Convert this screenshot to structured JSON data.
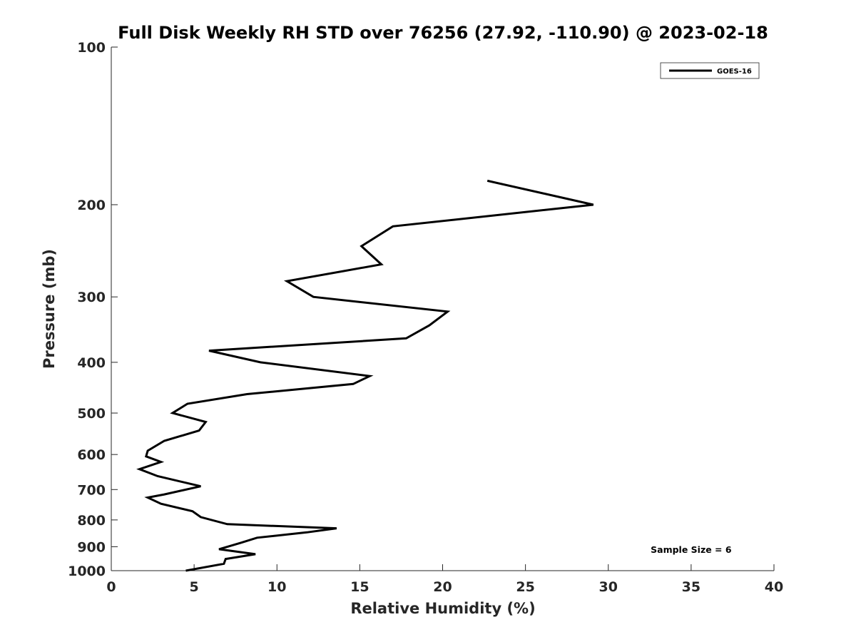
{
  "chart_data": {
    "type": "line",
    "title": "Full Disk Weekly RH STD over 76256 (27.92, -110.90) @ 2023-02-18",
    "xlabel": "Relative Humidity (%)",
    "ylabel": "Pressure (mb)",
    "xlim": [
      0,
      40
    ],
    "ylim": [
      1000,
      100
    ],
    "y_scale": "log",
    "y_reversed": true,
    "grid": false,
    "legend_position": "top-right",
    "xticks": [
      "0",
      "5",
      "10",
      "15",
      "20",
      "25",
      "30",
      "35",
      "40"
    ],
    "xtick_values": [
      0,
      5,
      10,
      15,
      20,
      25,
      30,
      35,
      40
    ],
    "yticks": [
      "100",
      "200",
      "300",
      "400",
      "500",
      "600",
      "700",
      "800",
      "900",
      "1000"
    ],
    "ytick_values": [
      100,
      200,
      300,
      400,
      500,
      600,
      700,
      800,
      900,
      1000
    ],
    "series": [
      {
        "name": "GOES-16",
        "color": "#000000",
        "x": [
          22.7,
          29.1,
          17.0,
          15.1,
          16.3,
          10.6,
          12.2,
          20.3,
          19.2,
          17.8,
          5.9,
          9.0,
          15.6,
          14.6,
          8.2,
          4.6,
          3.7,
          5.7,
          5.3,
          3.2,
          2.2,
          2.1,
          3.0,
          1.7,
          2.8,
          5.4,
          3.2,
          2.2,
          3.0,
          4.9,
          5.4,
          7.0,
          13.6,
          11.8,
          8.8,
          7.8,
          6.5,
          8.7,
          6.9,
          6.8,
          4.5
        ],
        "y": [
          180,
          200,
          220,
          240,
          260,
          280,
          300,
          320,
          340,
          360,
          380,
          400,
          425,
          440,
          460,
          480,
          500,
          520,
          540,
          565,
          590,
          605,
          620,
          640,
          660,
          690,
          715,
          725,
          745,
          770,
          790,
          815,
          830,
          845,
          865,
          885,
          910,
          930,
          950,
          970,
          1000
        ]
      }
    ],
    "annotations": [
      {
        "text": "Sample Size = 6",
        "x": 35,
        "y": 910
      }
    ]
  }
}
